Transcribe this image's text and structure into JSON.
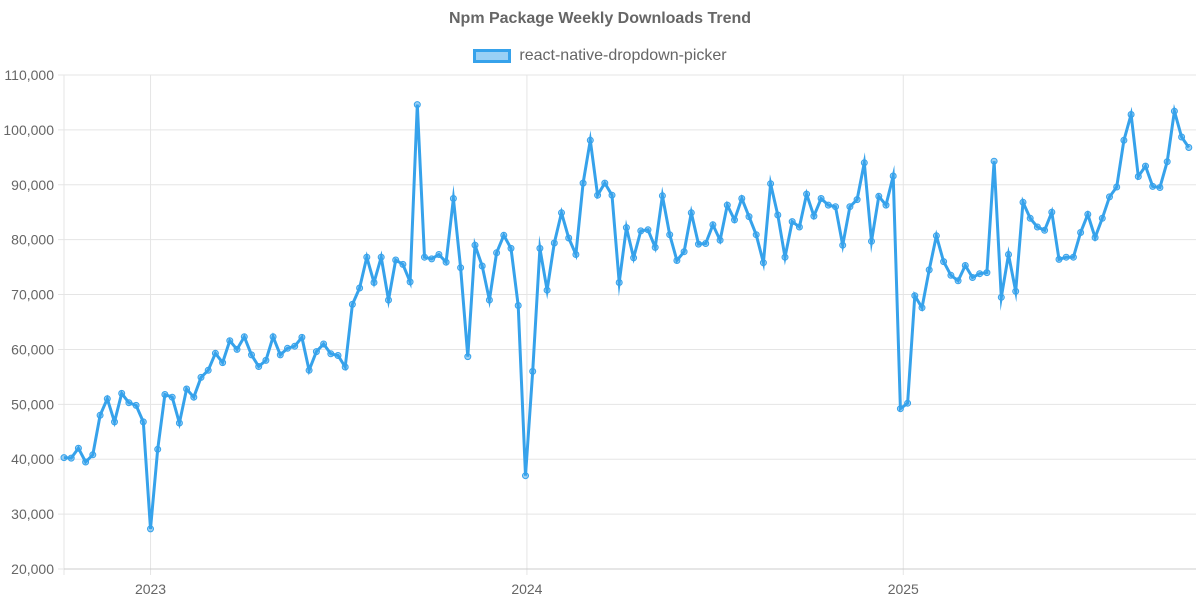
{
  "chart_data": {
    "type": "line",
    "title": "Npm Package Weekly Downloads Trend",
    "legend": {
      "label": "react-native-dropdown-picker",
      "placement": "top"
    },
    "colors": {
      "line": "#36A2EB",
      "fill": "rgba(54,162,235,0.5)",
      "grid": "#e5e5e5",
      "text": "#666666"
    },
    "xlabel": "",
    "ylabel": "",
    "ylim": [
      20000,
      110000
    ],
    "y_ticks": [
      20000,
      30000,
      40000,
      50000,
      60000,
      70000,
      80000,
      90000,
      100000,
      110000
    ],
    "y_tick_labels": [
      "20,000",
      "30,000",
      "40,000",
      "50,000",
      "60,000",
      "70,000",
      "80,000",
      "90,000",
      "100,000",
      "110,000"
    ],
    "x_range_weeks": [
      0,
      157
    ],
    "x_ticks": [
      {
        "week": 12.0,
        "label": "2023"
      },
      {
        "week": 64.2,
        "label": "2024"
      },
      {
        "week": 116.4,
        "label": "2025"
      }
    ],
    "series": [
      {
        "name": "react-native-dropdown-picker",
        "values": [
          40300,
          40200,
          42000,
          39500,
          40800,
          48000,
          51000,
          46800,
          52000,
          50300,
          49800,
          46800,
          27300,
          41800,
          51800,
          51300,
          46600,
          52800,
          51300,
          54900,
          56200,
          59300,
          57600,
          61600,
          60000,
          62300,
          59000,
          56900,
          58000,
          62300,
          59000,
          60200,
          60600,
          62200,
          56200,
          59600,
          61000,
          59200,
          58900,
          56800,
          68200,
          71200,
          76800,
          72200,
          76800,
          69000,
          76300,
          75500,
          72300,
          104600,
          76800,
          76500,
          77300,
          75900,
          87500,
          74900,
          58700,
          79000,
          75200,
          69000,
          77600,
          80800,
          78400,
          68000,
          37000,
          56000,
          78400,
          70800,
          79400,
          84900,
          80300,
          77300,
          90300,
          98100,
          88100,
          90300,
          88100,
          72200,
          82200,
          76700,
          81600,
          81800,
          78600,
          88000,
          80900,
          76200,
          77800,
          84900,
          79200,
          79300,
          82700,
          79900,
          86300,
          83600,
          87500,
          84200,
          80900,
          75800,
          90200,
          84500,
          76800,
          83300,
          82300,
          88300,
          84300,
          87500,
          86300,
          86000,
          79000,
          86000,
          87300,
          94000,
          79700,
          87900,
          86300,
          91600,
          49200,
          50200,
          69800,
          67600,
          74500,
          80700,
          76000,
          73500,
          72500,
          75300,
          73100,
          73800,
          74000,
          94300,
          69500,
          77300,
          70600,
          86800,
          83900,
          82300,
          81700,
          85000,
          76400,
          76800,
          76800,
          81300,
          84600,
          80400,
          83900,
          87800,
          89600,
          98100,
          102800,
          91500,
          93400,
          89700,
          89500,
          94200,
          103400,
          98700,
          96800
        ]
      }
    ]
  }
}
